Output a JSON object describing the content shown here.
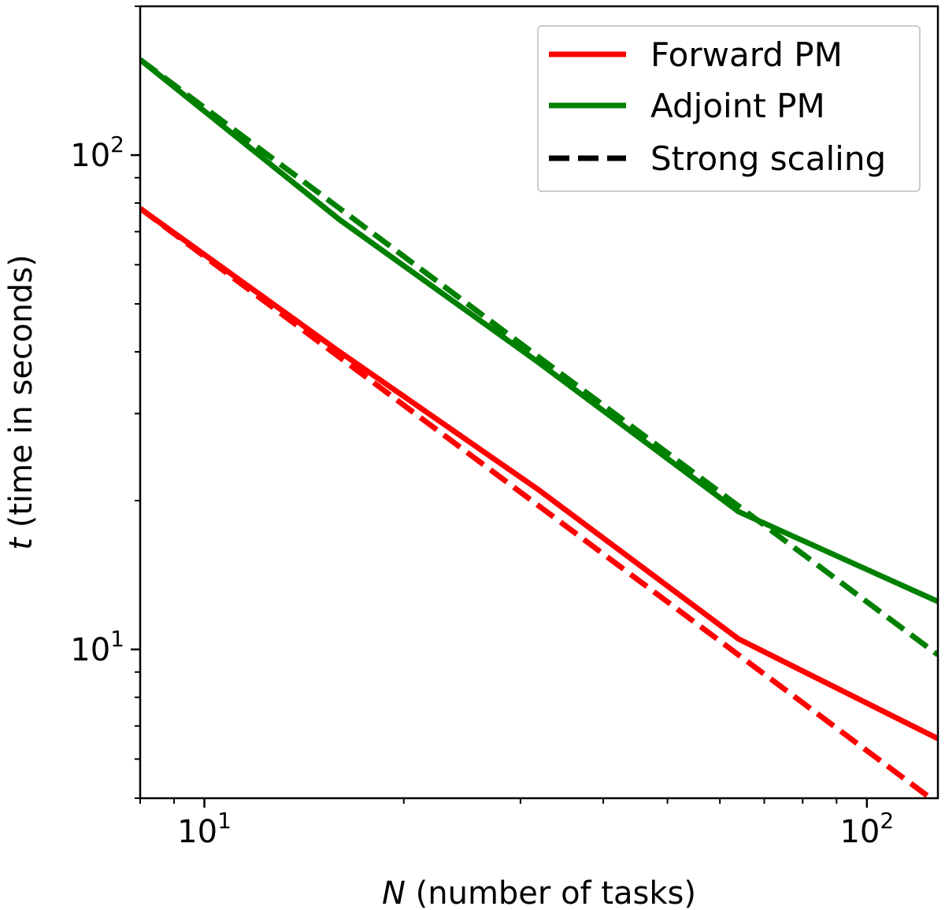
{
  "chart_data": {
    "type": "line",
    "xscale": "log",
    "yscale": "log",
    "xlim": [
      8,
      128
    ],
    "ylim": [
      5,
      200
    ],
    "xlabel": {
      "var": "N",
      "text": " (number of tasks)"
    },
    "ylabel": {
      "var": "t",
      "text": " (time in seconds)"
    },
    "xticks": [
      {
        "value": 10,
        "base": "10",
        "exp": "1"
      },
      {
        "value": 100,
        "base": "10",
        "exp": "2"
      }
    ],
    "yticks": [
      {
        "value": 10,
        "base": "10",
        "exp": "1"
      },
      {
        "value": 100,
        "base": "10",
        "exp": "2"
      }
    ],
    "grid": false,
    "legend_position": "top-right",
    "series": [
      {
        "name": "Forward PM",
        "color": "#ff0000",
        "style": "solid",
        "x": [
          8,
          16,
          32,
          64,
          128
        ],
        "y": [
          78,
          40,
          21,
          10.5,
          6.6
        ]
      },
      {
        "name": "Forward strong scaling",
        "color": "#ff0000",
        "style": "dashed",
        "x": [
          8,
          128
        ],
        "y": [
          78,
          4.875
        ]
      },
      {
        "name": "Adjoint PM",
        "color": "#008000",
        "style": "solid",
        "x": [
          8,
          16,
          32,
          64,
          128
        ],
        "y": [
          156,
          74,
          38,
          19,
          12.5
        ]
      },
      {
        "name": "Adjoint strong scaling",
        "color": "#008000",
        "style": "dashed",
        "x": [
          8,
          128
        ],
        "y": [
          156,
          9.75
        ]
      }
    ],
    "legend": [
      {
        "label": "Forward PM",
        "color": "#ff0000",
        "style": "solid"
      },
      {
        "label": "Adjoint PM",
        "color": "#008000",
        "style": "solid"
      },
      {
        "label": "Strong scaling",
        "color": "#000000",
        "style": "dashed"
      }
    ]
  }
}
